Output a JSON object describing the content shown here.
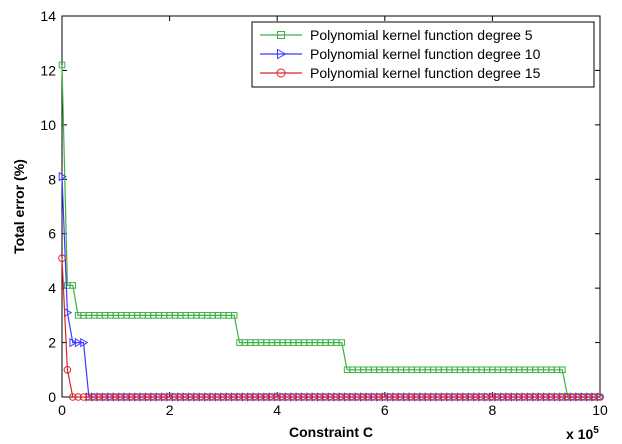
{
  "chart_data": {
    "type": "line",
    "xlabel": "Constraint C",
    "ylabel": "Total error (%)",
    "x_multiplier": "x 10",
    "x_multiplier_exp": "5",
    "xlim": [
      0,
      10
    ],
    "ylim": [
      0,
      14
    ],
    "x_ticks": [
      {
        "value": 0,
        "label": "0"
      },
      {
        "value": 2,
        "label": "2"
      },
      {
        "value": 4,
        "label": "4"
      },
      {
        "value": 6,
        "label": "6"
      },
      {
        "value": 8,
        "label": "8"
      },
      {
        "value": 10,
        "label": "10"
      }
    ],
    "y_ticks": [
      {
        "value": 0,
        "label": "0"
      },
      {
        "value": 2,
        "label": "2"
      },
      {
        "value": 4,
        "label": "4"
      },
      {
        "value": 6,
        "label": "6"
      },
      {
        "value": 8,
        "label": "8"
      },
      {
        "value": 10,
        "label": "10"
      },
      {
        "value": 12,
        "label": "12"
      },
      {
        "value": 14,
        "label": "14"
      }
    ],
    "grid": false,
    "legend_position": "top-right",
    "series": [
      {
        "name": "Polynomial kernel function degree 5",
        "color": "#3cb043",
        "marker": "square",
        "segments": [
          {
            "x0": 0.0,
            "x1": 0.0,
            "y": 12.2
          },
          {
            "x0": 0.1,
            "x1": 0.2,
            "y": 4.1
          },
          {
            "x0": 0.3,
            "x1": 3.2,
            "y": 3.0
          },
          {
            "x0": 3.3,
            "x1": 5.2,
            "y": 2.0
          },
          {
            "x0": 5.3,
            "x1": 9.3,
            "y": 1.0
          },
          {
            "x0": 9.4,
            "x1": 10.0,
            "y": 0.0
          }
        ]
      },
      {
        "name": "Polynomial kernel function degree 10",
        "color": "#3b3bff",
        "marker": "triangle-right",
        "segments": [
          {
            "x0": 0.0,
            "x1": 0.0,
            "y": 8.1
          },
          {
            "x0": 0.1,
            "x1": 0.1,
            "y": 3.1
          },
          {
            "x0": 0.2,
            "x1": 0.4,
            "y": 2.0
          },
          {
            "x0": 0.5,
            "x1": 10.0,
            "y": 0.0
          }
        ]
      },
      {
        "name": "Polynomial kernel function degree 15",
        "color": "#d62728",
        "marker": "circle",
        "segments": [
          {
            "x0": 0.0,
            "x1": 0.0,
            "y": 5.1
          },
          {
            "x0": 0.1,
            "x1": 0.1,
            "y": 1.0
          },
          {
            "x0": 0.2,
            "x1": 10.0,
            "y": 0.0
          }
        ]
      }
    ]
  }
}
